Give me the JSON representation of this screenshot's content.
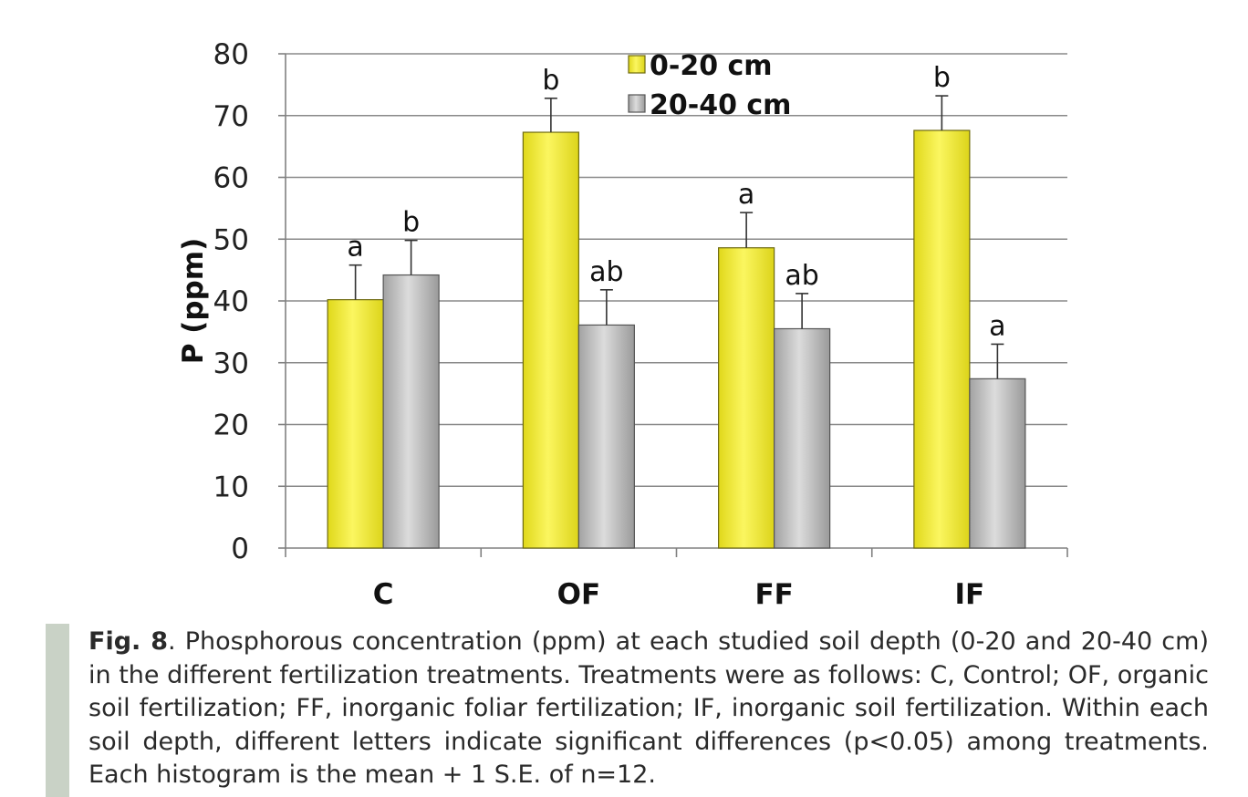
{
  "chart_data": {
    "type": "bar",
    "categories": [
      "C",
      "OF",
      "FF",
      "IF"
    ],
    "series": [
      {
        "name": "0-20 cm",
        "color": "#f2ea2e",
        "values": [
          40.2,
          67.3,
          48.6,
          67.6
        ],
        "errors": [
          5.6,
          5.5,
          5.7,
          5.6
        ],
        "letters": [
          "a",
          "b",
          "a",
          "b"
        ]
      },
      {
        "name": "20-40 cm",
        "color": "#b4b4b4",
        "values": [
          44.2,
          36.1,
          35.5,
          27.4
        ],
        "errors": [
          5.6,
          5.7,
          5.7,
          5.6
        ],
        "letters": [
          "b",
          "ab",
          "ab",
          "a"
        ]
      }
    ],
    "ylabel": "P (ppm)",
    "xlabel": "",
    "ylim": [
      0,
      80
    ],
    "yticks": [
      0,
      10,
      20,
      30,
      40,
      50,
      60,
      70,
      80
    ],
    "grid": true,
    "legend": "top-center"
  },
  "caption": {
    "label": "Fig. 8",
    "text": ". Phosphorous concentration (ppm) at each studied soil depth (0-20 and 20-40 cm) in the different fertilization treatments. Treatments were as follows: C, Control; OF, organic soil fertilization; FF, inorganic foliar fertilization; IF, inorganic soil fertilization. Within each soil depth, different letters indicate significant differences (p<0.05) among treatments. Each histogram is the mean + 1 S.E. of n=12."
  }
}
